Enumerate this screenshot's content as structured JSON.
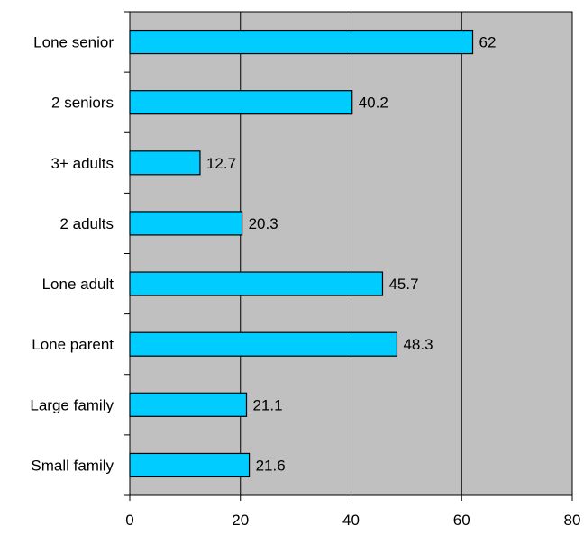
{
  "chart_data": {
    "type": "bar",
    "orientation": "horizontal",
    "categories": [
      "Lone senior",
      "2 seniors",
      "3+ adults",
      "2 adults",
      "Lone adult",
      "Lone parent",
      "Large family",
      "Small family"
    ],
    "values": [
      62,
      40.2,
      12.7,
      20.3,
      45.7,
      48.3,
      21.1,
      21.6
    ],
    "value_labels": [
      "62",
      "40.2",
      "12.7",
      "20.3",
      "45.7",
      "48.3",
      "21.1",
      "21.6"
    ],
    "x_ticks": [
      "0",
      "20",
      "40",
      "60",
      "80"
    ],
    "xlim": [
      0,
      80
    ],
    "title": "",
    "xlabel": "",
    "ylabel": "",
    "grid": "vertical",
    "legend": "none",
    "colors": {
      "bar_fill": "#00ccff",
      "bar_stroke": "#000000",
      "plot_background": "#c0c0c0",
      "gridline": "#000000"
    }
  }
}
